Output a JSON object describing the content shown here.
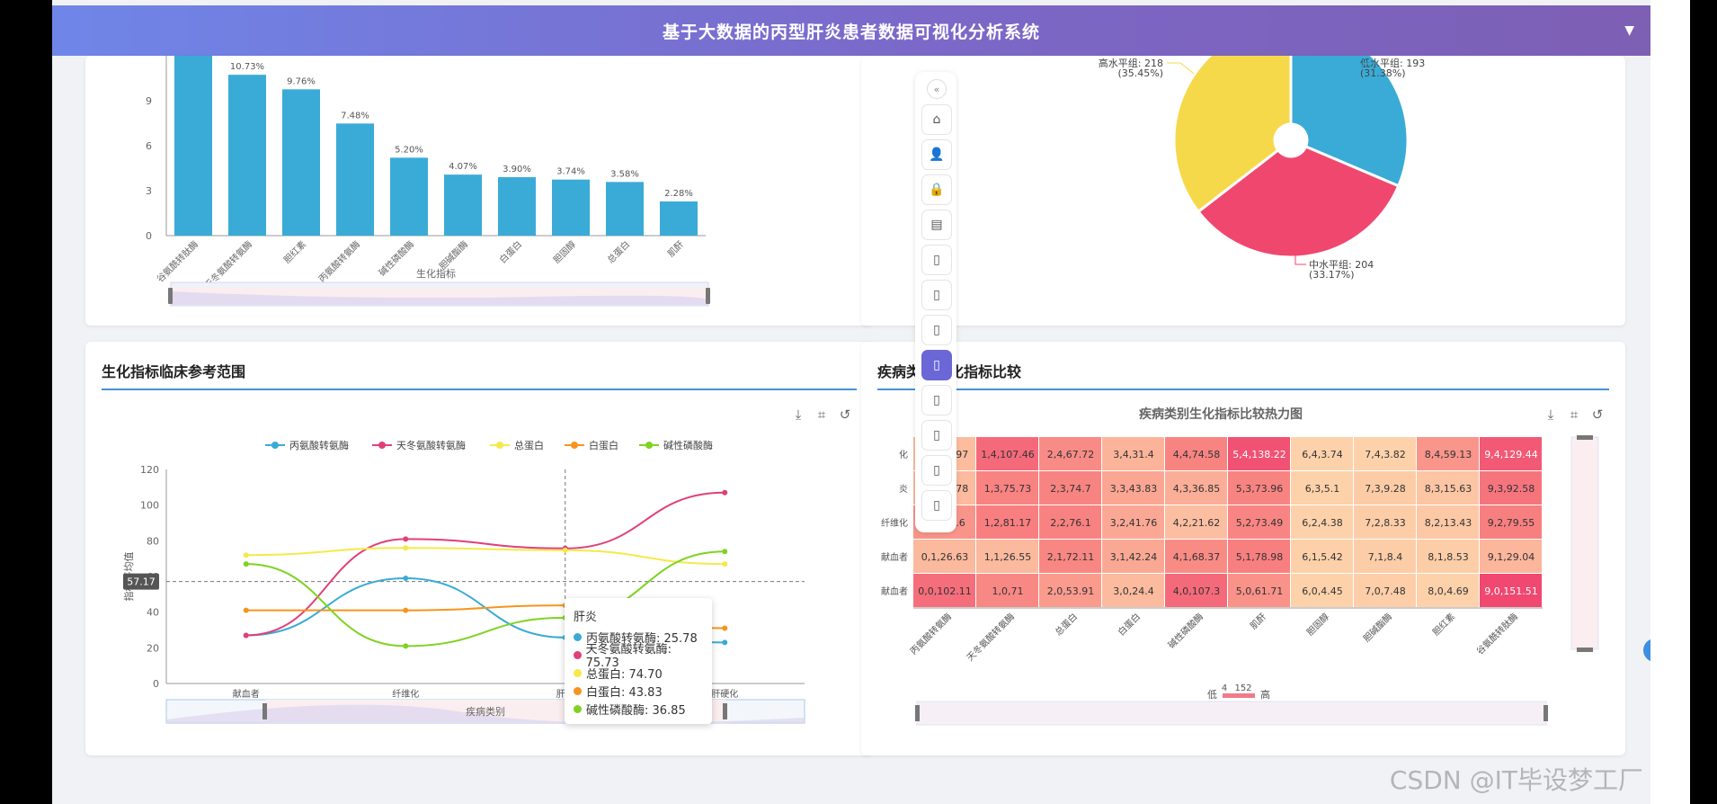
{
  "header": {
    "title": "基于大数据的丙型肝炎患者数据可视化分析系统"
  },
  "bar_chart": {
    "chart_data": {
      "type": "bar",
      "categories": [
        "谷氨酰转肽酶",
        "天冬氨酸转氨酶",
        "胆红素",
        "丙氨酸转氨酶",
        "碱性磷酸酶",
        "胆碱酯酶",
        "白蛋白",
        "胆固醇",
        "总蛋白",
        "肌酐"
      ],
      "values": [
        12.0,
        10.73,
        9.76,
        7.48,
        5.2,
        4.07,
        3.9,
        3.74,
        3.58,
        2.28
      ],
      "labels": [
        "",
        "10.73%",
        "9.76%",
        "7.48%",
        "5.20%",
        "4.07%",
        "3.90%",
        "3.74%",
        "3.58%",
        "2.28%"
      ],
      "xlabel": "生化指标",
      "ylim": [
        0,
        12
      ],
      "yticks": [
        "0",
        "3",
        "6",
        "9"
      ],
      "color": "#3aabd6"
    }
  },
  "pie_chart": {
    "chart_data": {
      "type": "pie",
      "slices": [
        {
          "name": "低水平组: 193",
          "pct": "(31.38%)",
          "value": 193,
          "color": "#3aabd6"
        },
        {
          "name": "中水平组: 204",
          "pct": "(33.17%)",
          "value": 204,
          "color": "#f0476e"
        },
        {
          "name": "高水平组: 218",
          "pct": "(35.45%)",
          "value": 218,
          "color": "#f5d94b"
        }
      ]
    }
  },
  "line_panel": {
    "title": "生化指标临床参考范围",
    "chart_data": {
      "type": "line",
      "categories": [
        "献血者",
        "纤维化",
        "肝炎",
        "肝硬化"
      ],
      "ylabel": "指标平均值",
      "xlabel": "疾病类别",
      "ylim": [
        0,
        120
      ],
      "yticks": [
        "0",
        "20",
        "40",
        "60",
        "80",
        "100",
        "120"
      ],
      "crosshair_label": "57.17",
      "crosshair_value": 57.17,
      "series": [
        {
          "name": "丙氨酸转氨酶",
          "color": "#3aabd6",
          "values": [
            27,
            59,
            25.78,
            23
          ]
        },
        {
          "name": "天冬氨酸转氨酶",
          "color": "#e0407a",
          "values": [
            27,
            81,
            75.73,
            107
          ]
        },
        {
          "name": "总蛋白",
          "color": "#f5e94b",
          "values": [
            72,
            76,
            74.7,
            67
          ]
        },
        {
          "name": "白蛋白",
          "color": "#f7941d",
          "values": [
            41,
            41,
            43.83,
            31
          ]
        },
        {
          "name": "碱性磷酸酶",
          "color": "#7ed321",
          "values": [
            67,
            21,
            36.85,
            74
          ]
        }
      ]
    },
    "tooltip": {
      "title": "肝炎",
      "rows": [
        {
          "text": "丙氨酸转氨酶: 25.78",
          "color": "#3aabd6"
        },
        {
          "text": "天冬氨酸转氨酶: 75.73",
          "color": "#e0407a"
        },
        {
          "text": "总蛋白: 74.70",
          "color": "#f5e94b"
        },
        {
          "text": "白蛋白: 43.83",
          "color": "#f7941d"
        },
        {
          "text": "碱性磷酸酶: 36.85",
          "color": "#7ed321"
        }
      ]
    }
  },
  "heatmap_panel": {
    "title": "疾病类别生化指标比较",
    "chart_title": "疾病类别生化指标比较热力图",
    "chart_data": {
      "type": "heatmap",
      "columns": [
        "丙氨酸转氨酶",
        "天冬氨酸转氨酶",
        "总蛋白",
        "白蛋白",
        "碱性磷酸酶",
        "肌酐",
        "胆固醇",
        "胆碱酯酶",
        "胆红素",
        "谷氨酰转肽酶"
      ],
      "rows": [
        {
          "label": "化",
          "cells": [
            [
              "0,4,22.97",
              22.97
            ],
            [
              "1,4,107.46",
              107.46
            ],
            [
              "2,4,67.72",
              67.72
            ],
            [
              "3,4,31.4",
              31.4
            ],
            [
              "4,4,74.58",
              74.58
            ],
            [
              "5,4,138.22",
              138.22
            ],
            [
              "6,4,3.74",
              3.74
            ],
            [
              "7,4,3.82",
              3.82
            ],
            [
              "8,4,59.13",
              59.13
            ],
            [
              "9,4,129.44",
              129.44
            ]
          ]
        },
        {
          "label": "炎",
          "cells": [
            [
              "0,3,25.78",
              25.78
            ],
            [
              "1,3,75.73",
              75.73
            ],
            [
              "2,3,74.7",
              74.7
            ],
            [
              "3,3,43.83",
              43.83
            ],
            [
              "4,3,36.85",
              36.85
            ],
            [
              "5,3,73.96",
              73.96
            ],
            [
              "6,3,5.1",
              5.1
            ],
            [
              "7,3,9.28",
              9.28
            ],
            [
              "8,3,15.63",
              15.63
            ],
            [
              "9,3,92.58",
              92.58
            ]
          ]
        },
        {
          "label": "纤维化",
          "cells": [
            [
              "0,2,59.6",
              59.6
            ],
            [
              "1,2,81.17",
              81.17
            ],
            [
              "2,2,76.1",
              76.1
            ],
            [
              "3,2,41.76",
              41.76
            ],
            [
              "4,2,21.62",
              21.62
            ],
            [
              "5,2,73.49",
              73.49
            ],
            [
              "6,2,4.38",
              4.38
            ],
            [
              "7,2,8.33",
              8.33
            ],
            [
              "8,2,13.43",
              13.43
            ],
            [
              "9,2,79.55",
              79.55
            ]
          ]
        },
        {
          "label": "献血者",
          "cells": [
            [
              "0,1,26.63",
              26.63
            ],
            [
              "1,1,26.55",
              26.55
            ],
            [
              "2,1,72.11",
              72.11
            ],
            [
              "3,1,42.24",
              42.24
            ],
            [
              "4,1,68.37",
              68.37
            ],
            [
              "5,1,78.98",
              78.98
            ],
            [
              "6,1,5.42",
              5.42
            ],
            [
              "7,1,8.4",
              8.4
            ],
            [
              "8,1,8.53",
              8.53
            ],
            [
              "9,1,29.04",
              29.04
            ]
          ]
        },
        {
          "label": "献血者",
          "cells": [
            [
              "0,0,102.11",
              102.11
            ],
            [
              "1,0,71",
              71
            ],
            [
              "2,0,53.91",
              53.91
            ],
            [
              "3,0,24.4",
              24.4
            ],
            [
              "4,0,107.3",
              107.3
            ],
            [
              "5,0,61.71",
              61.71
            ],
            [
              "6,0,4.45",
              4.45
            ],
            [
              "7,0,7.48",
              7.48
            ],
            [
              "8,0,4.69",
              4.69
            ],
            [
              "9,0,151.51",
              151.51
            ]
          ]
        }
      ],
      "visual_map": {
        "low_label": "低",
        "high_label": "高",
        "min": "4",
        "max": "152"
      }
    }
  },
  "icons": [
    "download-icon",
    "crop-icon",
    "restore-icon",
    "home-icon",
    "user-icon",
    "lock-icon",
    "chart-icon",
    "document-icon"
  ],
  "watermark": "CSDN @IT毕设梦工厂"
}
